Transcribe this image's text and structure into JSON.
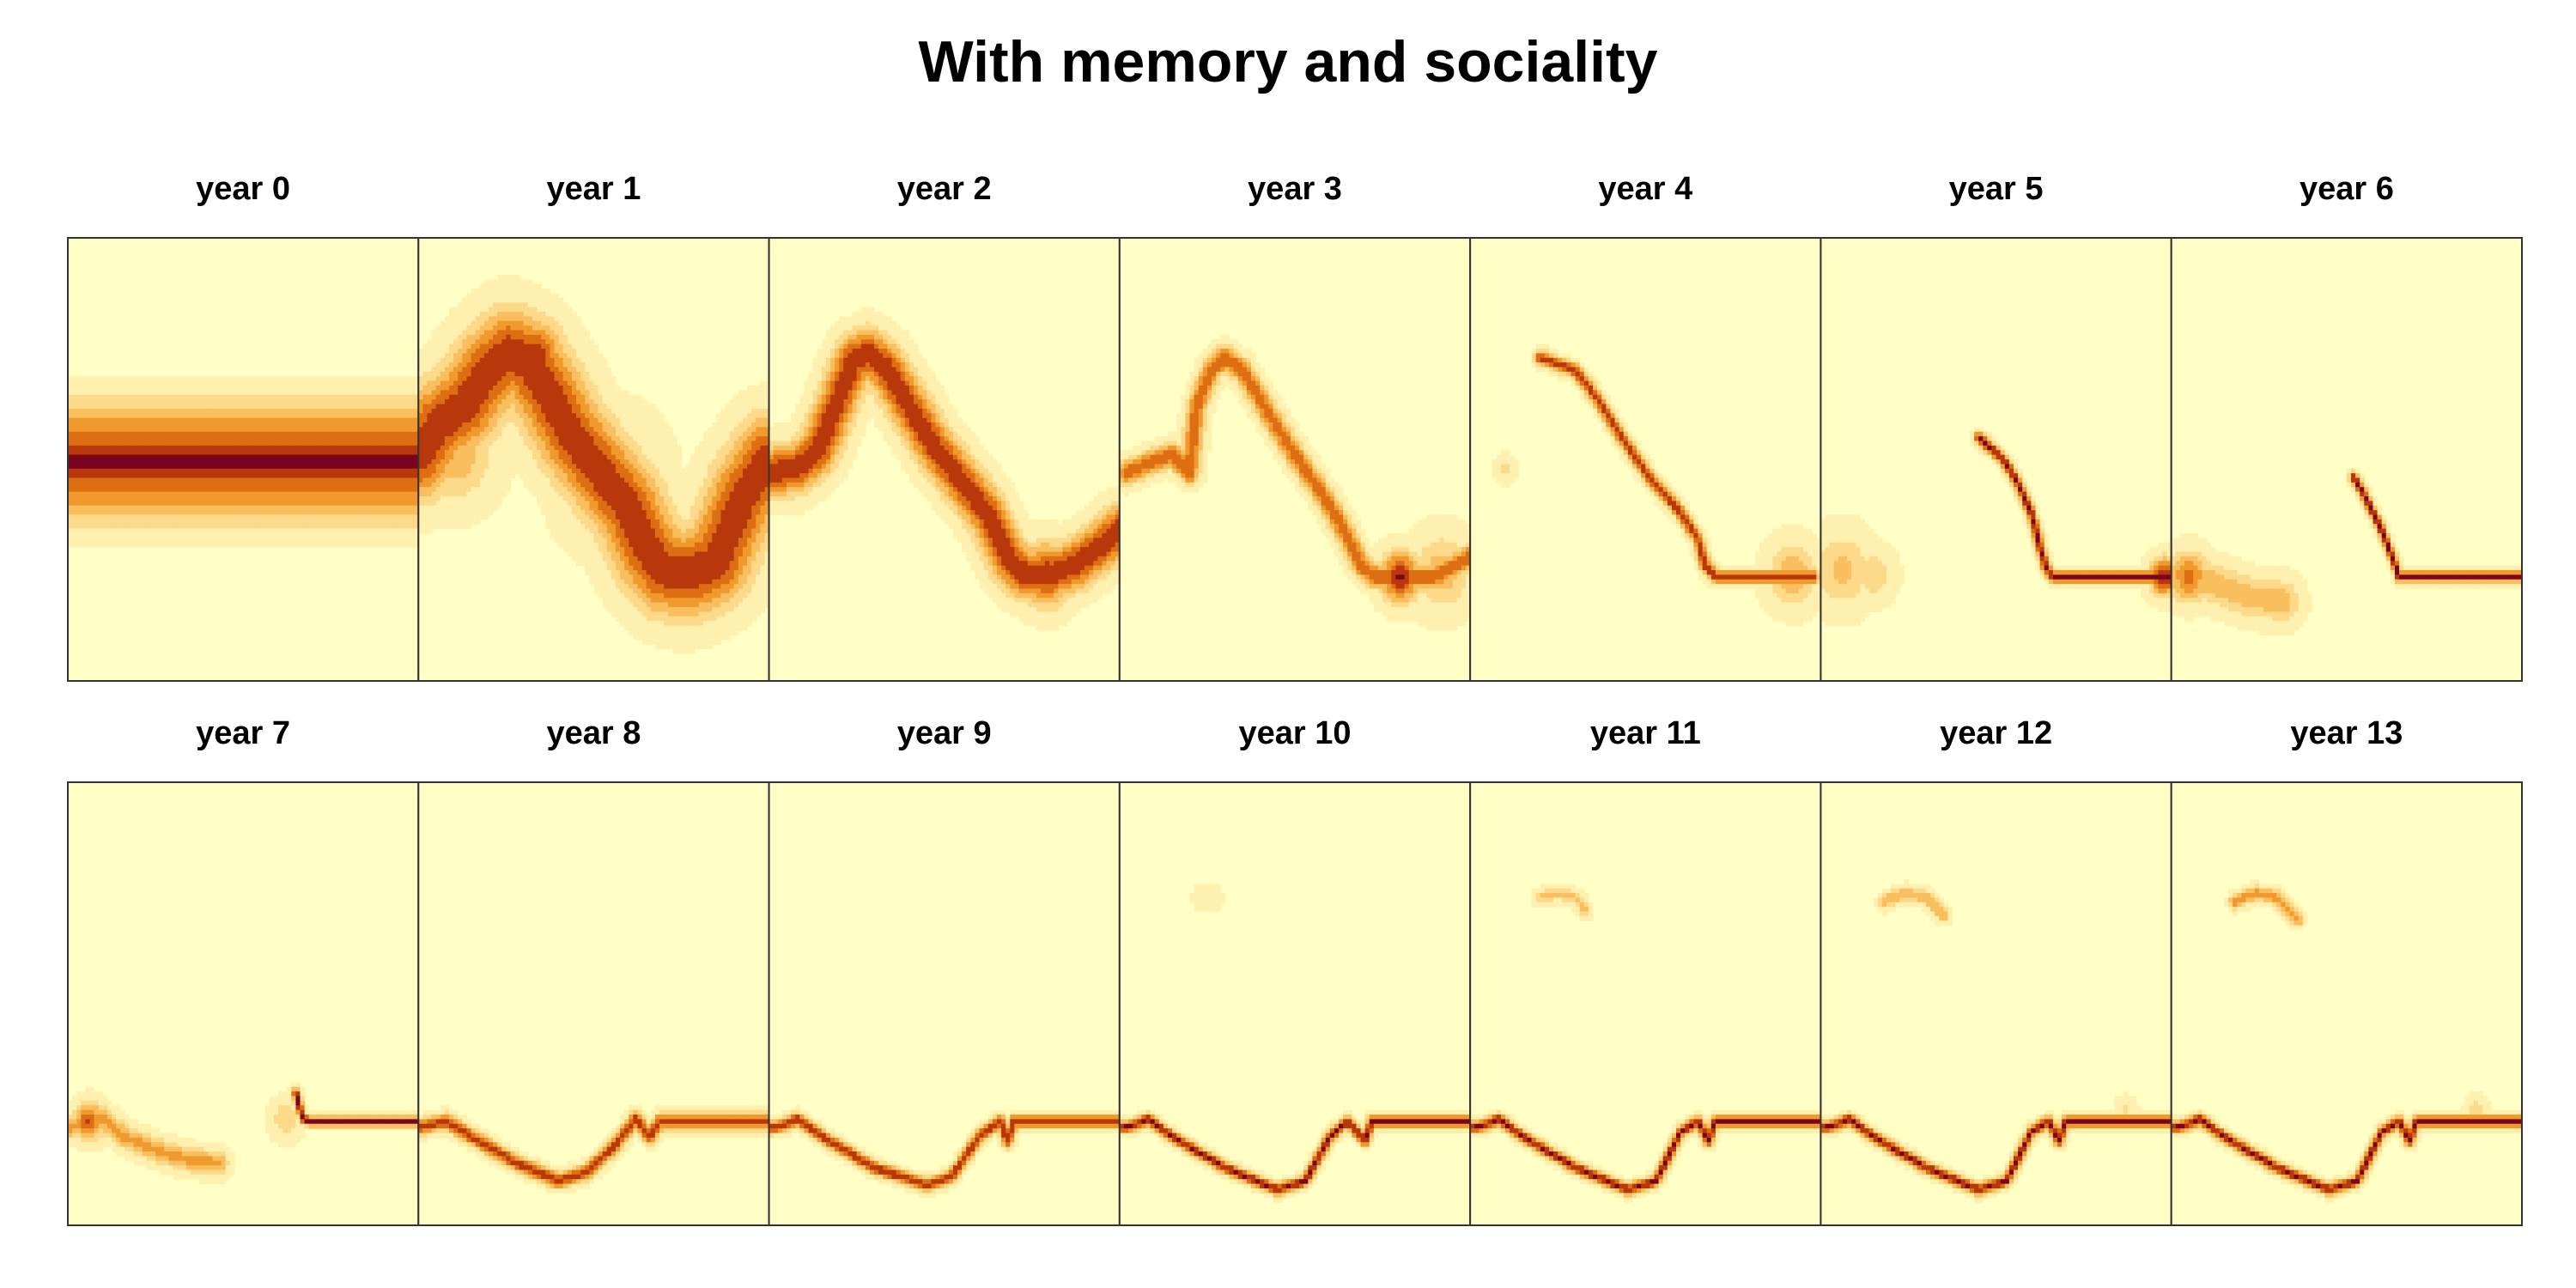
{
  "chart_data": {
    "type": "heatmap",
    "title": "With memory and sociality",
    "xlabel": "",
    "ylabel": "",
    "grid": false,
    "legend": "none",
    "axes_visible": false,
    "layout": {
      "rows": 2,
      "cols": 7
    },
    "colors": {
      "background": "#FFFFC6",
      "scale": [
        "#FFFFC6",
        "#FFF0B0",
        "#FDD98A",
        "#F9BE5E",
        "#F09A2E",
        "#DE6E12",
        "#B8380C",
        "#7A0520"
      ],
      "panel_border": "#333333"
    },
    "panels": [
      {
        "title": "year 0",
        "kind": "band",
        "center": 0.505,
        "halfwidth": 0.21
      },
      {
        "title": "year 1",
        "kind": "curve",
        "points": [
          [
            0.0,
            0.49
          ],
          [
            0.06,
            0.42
          ],
          [
            0.13,
            0.38
          ],
          [
            0.2,
            0.3
          ],
          [
            0.26,
            0.26
          ],
          [
            0.31,
            0.28
          ],
          [
            0.37,
            0.35
          ],
          [
            0.44,
            0.45
          ],
          [
            0.52,
            0.53
          ],
          [
            0.6,
            0.61
          ],
          [
            0.65,
            0.7
          ],
          [
            0.7,
            0.75
          ],
          [
            0.76,
            0.76
          ],
          [
            0.8,
            0.75
          ],
          [
            0.85,
            0.73
          ],
          [
            0.93,
            0.58
          ],
          [
            1.0,
            0.5
          ]
        ],
        "peak": 0.9,
        "spread": 0.07,
        "blobs": [
          [
            0.1,
            0.48,
            0.08,
            0.5
          ],
          [
            0.33,
            0.27,
            0.06,
            0.9
          ],
          [
            0.75,
            0.75,
            0.06,
            0.9
          ],
          [
            0.55,
            0.55,
            0.1,
            0.35
          ]
        ]
      },
      {
        "title": "year 2",
        "kind": "curve",
        "points": [
          [
            0.0,
            0.53
          ],
          [
            0.08,
            0.52
          ],
          [
            0.14,
            0.48
          ],
          [
            0.2,
            0.36
          ],
          [
            0.24,
            0.28
          ],
          [
            0.28,
            0.26
          ],
          [
            0.33,
            0.29
          ],
          [
            0.4,
            0.38
          ],
          [
            0.47,
            0.47
          ],
          [
            0.55,
            0.55
          ],
          [
            0.62,
            0.62
          ],
          [
            0.68,
            0.72
          ],
          [
            0.73,
            0.76
          ],
          [
            0.8,
            0.76
          ],
          [
            0.87,
            0.74
          ],
          [
            0.94,
            0.7
          ],
          [
            1.0,
            0.66
          ]
        ],
        "peak": 0.9,
        "spread": 0.04,
        "blobs": [
          [
            0.06,
            0.52,
            0.05,
            0.4
          ],
          [
            0.25,
            0.27,
            0.04,
            0.9
          ],
          [
            0.79,
            0.76,
            0.05,
            0.9
          ]
        ]
      },
      {
        "title": "year 3",
        "kind": "curve",
        "points": [
          [
            0.02,
            0.53
          ],
          [
            0.08,
            0.51
          ],
          [
            0.15,
            0.49
          ],
          [
            0.2,
            0.53
          ],
          [
            0.22,
            0.38
          ],
          [
            0.26,
            0.3
          ],
          [
            0.3,
            0.27
          ],
          [
            0.35,
            0.3
          ],
          [
            0.42,
            0.39
          ],
          [
            0.5,
            0.49
          ],
          [
            0.58,
            0.58
          ],
          [
            0.64,
            0.66
          ],
          [
            0.69,
            0.74
          ],
          [
            0.73,
            0.765
          ],
          [
            0.9,
            0.765
          ],
          [
            1.0,
            0.72
          ]
        ],
        "peak": 0.75,
        "spread": 0.02,
        "blobs": [
          [
            0.8,
            0.765,
            0.04,
            0.95
          ],
          [
            0.92,
            0.755,
            0.06,
            0.45
          ]
        ]
      },
      {
        "title": "year 4",
        "kind": "curve",
        "points": [
          [
            0.2,
            0.27
          ],
          [
            0.3,
            0.3
          ],
          [
            0.36,
            0.36
          ],
          [
            0.44,
            0.46
          ],
          [
            0.52,
            0.55
          ],
          [
            0.6,
            0.62
          ],
          [
            0.65,
            0.68
          ],
          [
            0.67,
            0.74
          ],
          [
            0.7,
            0.765
          ],
          [
            0.98,
            0.765
          ]
        ],
        "peak": 0.85,
        "spread": 0.012,
        "blobs": [
          [
            0.1,
            0.52,
            0.02,
            0.25
          ],
          [
            0.92,
            0.76,
            0.05,
            0.5
          ]
        ]
      },
      {
        "title": "year 5",
        "kind": "curve",
        "points": [
          [
            0.45,
            0.45
          ],
          [
            0.52,
            0.5
          ],
          [
            0.56,
            0.55
          ],
          [
            0.6,
            0.62
          ],
          [
            0.62,
            0.68
          ],
          [
            0.64,
            0.74
          ],
          [
            0.66,
            0.765
          ],
          [
            1.0,
            0.765
          ]
        ],
        "peak": 0.95,
        "spread": 0.01,
        "blobs": [
          [
            0.06,
            0.75,
            0.06,
            0.4
          ],
          [
            0.15,
            0.76,
            0.04,
            0.35
          ],
          [
            0.98,
            0.765,
            0.03,
            0.95
          ]
        ]
      },
      {
        "title": "year 6",
        "kind": "curve",
        "points": [
          [
            0.0,
            0.77
          ],
          [
            0.05,
            0.76
          ],
          [
            0.12,
            0.78
          ],
          [
            0.22,
            0.81
          ],
          [
            0.32,
            0.82
          ]
        ],
        "peak": 0.45,
        "spread": 0.035,
        "blobs": [
          [
            0.05,
            0.765,
            0.04,
            0.7
          ]
        ],
        "extra": [
          [
            [
              0.52,
              0.54
            ],
            [
              0.55,
              0.58
            ],
            [
              0.6,
              0.66
            ],
            [
              0.63,
              0.72
            ],
            [
              0.65,
              0.765
            ],
            [
              1.0,
              0.765
            ]
          ]
        ],
        "extraPeak": 1.0,
        "extraSpread": 0.009
      },
      {
        "title": "year 7",
        "kind": "curve",
        "points": [
          [
            0.0,
            0.78
          ],
          [
            0.05,
            0.77
          ],
          [
            0.1,
            0.76
          ],
          [
            0.16,
            0.8
          ],
          [
            0.25,
            0.83
          ],
          [
            0.33,
            0.85
          ],
          [
            0.43,
            0.86
          ]
        ],
        "peak": 0.55,
        "spread": 0.02,
        "blobs": [
          [
            0.06,
            0.765,
            0.03,
            0.8
          ],
          [
            0.62,
            0.76,
            0.03,
            0.35
          ]
        ],
        "extra": [
          [
            [
              0.65,
              0.7
            ],
            [
              0.67,
              0.76
            ],
            [
              0.69,
              0.765
            ],
            [
              1.0,
              0.765
            ]
          ]
        ],
        "extraPeak": 1.0,
        "extraSpread": 0.008
      },
      {
        "title": "year 8",
        "kind": "curve",
        "points": [
          [
            0.0,
            0.78
          ],
          [
            0.05,
            0.77
          ],
          [
            0.08,
            0.765
          ],
          [
            0.15,
            0.8
          ],
          [
            0.28,
            0.86
          ],
          [
            0.4,
            0.9
          ],
          [
            0.48,
            0.88
          ],
          [
            0.56,
            0.82
          ],
          [
            0.62,
            0.76
          ],
          [
            0.66,
            0.8
          ],
          [
            0.69,
            0.765
          ],
          [
            1.0,
            0.765
          ]
        ],
        "peak": 0.85,
        "spread": 0.013,
        "blobs": []
      },
      {
        "title": "year 9",
        "kind": "curve",
        "points": [
          [
            0.0,
            0.78
          ],
          [
            0.04,
            0.775
          ],
          [
            0.08,
            0.76
          ],
          [
            0.15,
            0.8
          ],
          [
            0.3,
            0.87
          ],
          [
            0.45,
            0.91
          ],
          [
            0.52,
            0.89
          ],
          [
            0.6,
            0.8
          ],
          [
            0.66,
            0.765
          ],
          [
            0.68,
            0.81
          ],
          [
            0.7,
            0.765
          ],
          [
            1.0,
            0.765
          ]
        ],
        "peak": 0.9,
        "spread": 0.011,
        "blobs": []
      },
      {
        "title": "year 10",
        "kind": "curve",
        "points": [
          [
            0.0,
            0.78
          ],
          [
            0.04,
            0.775
          ],
          [
            0.08,
            0.76
          ],
          [
            0.15,
            0.8
          ],
          [
            0.3,
            0.87
          ],
          [
            0.45,
            0.92
          ],
          [
            0.53,
            0.9
          ],
          [
            0.6,
            0.8
          ],
          [
            0.65,
            0.765
          ],
          [
            0.7,
            0.81
          ],
          [
            0.72,
            0.765
          ],
          [
            1.0,
            0.765
          ]
        ],
        "peak": 0.95,
        "spread": 0.01,
        "blobs": [
          [
            0.24,
            0.26,
            0.02,
            0.2
          ],
          [
            0.26,
            0.26,
            0.02,
            0.2
          ]
        ]
      },
      {
        "title": "year 11",
        "kind": "curve",
        "points": [
          [
            0.0,
            0.78
          ],
          [
            0.04,
            0.775
          ],
          [
            0.08,
            0.76
          ],
          [
            0.15,
            0.8
          ],
          [
            0.3,
            0.87
          ],
          [
            0.45,
            0.92
          ],
          [
            0.53,
            0.9
          ],
          [
            0.6,
            0.79
          ],
          [
            0.65,
            0.765
          ],
          [
            0.68,
            0.81
          ],
          [
            0.7,
            0.765
          ],
          [
            1.0,
            0.765
          ]
        ],
        "peak": 0.95,
        "spread": 0.01,
        "blobs": [],
        "extra": [
          [
            [
              0.2,
              0.26
            ],
            [
              0.25,
              0.25
            ],
            [
              0.3,
              0.26
            ],
            [
              0.33,
              0.29
            ]
          ]
        ],
        "extraPeak": 0.4,
        "extraSpread": 0.012
      },
      {
        "title": "year 12",
        "kind": "curve",
        "points": [
          [
            0.0,
            0.78
          ],
          [
            0.04,
            0.775
          ],
          [
            0.08,
            0.76
          ],
          [
            0.15,
            0.8
          ],
          [
            0.3,
            0.87
          ],
          [
            0.45,
            0.92
          ],
          [
            0.53,
            0.9
          ],
          [
            0.6,
            0.79
          ],
          [
            0.65,
            0.765
          ],
          [
            0.68,
            0.81
          ],
          [
            0.7,
            0.765
          ],
          [
            1.0,
            0.765
          ]
        ],
        "peak": 0.95,
        "spread": 0.01,
        "blobs": [
          [
            0.87,
            0.74,
            0.02,
            0.25
          ]
        ],
        "extra": [
          [
            [
              0.18,
              0.27
            ],
            [
              0.24,
              0.25
            ],
            [
              0.3,
              0.26
            ],
            [
              0.35,
              0.3
            ]
          ]
        ],
        "extraPeak": 0.5,
        "extraSpread": 0.012
      },
      {
        "title": "year 13",
        "kind": "curve",
        "points": [
          [
            0.0,
            0.78
          ],
          [
            0.04,
            0.775
          ],
          [
            0.08,
            0.76
          ],
          [
            0.15,
            0.8
          ],
          [
            0.3,
            0.87
          ],
          [
            0.45,
            0.92
          ],
          [
            0.53,
            0.9
          ],
          [
            0.6,
            0.79
          ],
          [
            0.65,
            0.765
          ],
          [
            0.68,
            0.81
          ],
          [
            0.7,
            0.765
          ],
          [
            1.0,
            0.765
          ]
        ],
        "peak": 0.95,
        "spread": 0.01,
        "blobs": [
          [
            0.87,
            0.74,
            0.02,
            0.3
          ]
        ],
        "extra": [
          [
            [
              0.18,
              0.27
            ],
            [
              0.24,
              0.25
            ],
            [
              0.3,
              0.26
            ],
            [
              0.36,
              0.31
            ]
          ]
        ],
        "extraPeak": 0.6,
        "extraSpread": 0.012
      }
    ]
  }
}
